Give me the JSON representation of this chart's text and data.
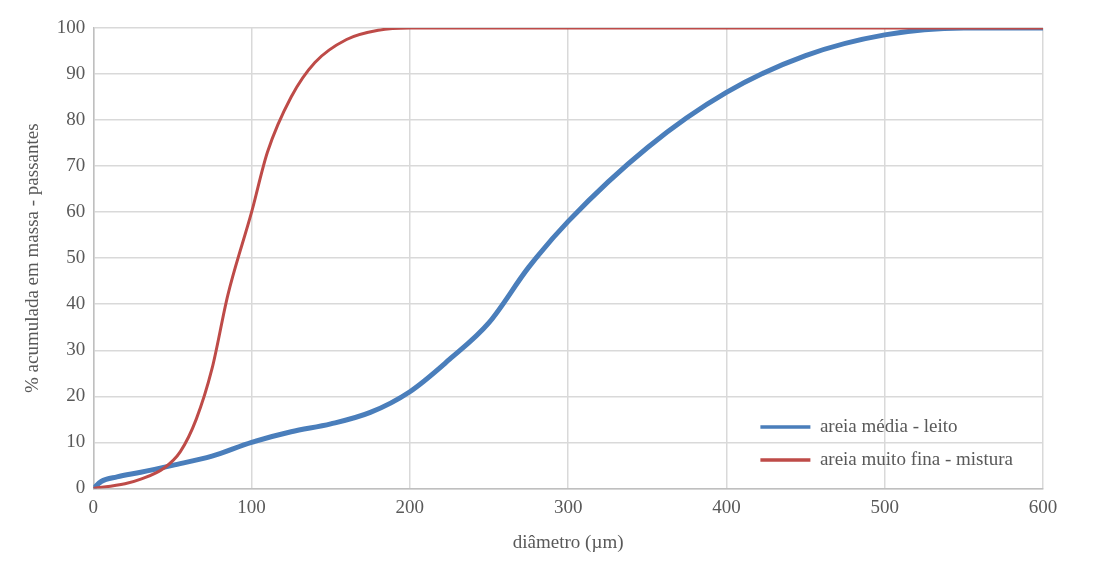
{
  "chart_data": {
    "type": "line",
    "xlabel": "diâmetro (µm)",
    "ylabel": "% acumulada em massa - passantes",
    "xlim": [
      0,
      600
    ],
    "xticks": [
      0,
      100,
      200,
      300,
      400,
      500,
      600
    ],
    "ylim": [
      0,
      100
    ],
    "yticks": [
      0,
      10,
      20,
      30,
      40,
      50,
      60,
      70,
      80,
      90,
      100
    ],
    "grid": true,
    "legend": "bottom right",
    "marker": "none",
    "line_style": "solid",
    "series": [
      {
        "name": "areia média - leito",
        "color": "#4a7ebb",
        "x": [
          0,
          5,
          15,
          30,
          50,
          75,
          100,
          125,
          150,
          175,
          200,
          225,
          250,
          275,
          300,
          350,
          400,
          450,
          500,
          550,
          600
        ],
        "values": [
          0,
          1.5,
          2.5,
          3.5,
          5,
          7,
          10,
          12.3,
          14,
          16.5,
          21,
          28,
          36,
          48,
          58,
          74,
          86,
          94,
          98.5,
          100,
          100
        ]
      },
      {
        "name": "areia muito fina - mistura",
        "color": "#be4b48",
        "x": [
          0,
          20,
          30,
          45,
          55,
          65,
          75,
          85,
          100,
          110,
          125,
          140,
          160,
          180,
          200,
          600
        ],
        "values": [
          0,
          1,
          2,
          4.5,
          8,
          15,
          26,
          42,
          60,
          73,
          85,
          92.5,
          97.5,
          99.5,
          100,
          100
        ]
      }
    ]
  }
}
